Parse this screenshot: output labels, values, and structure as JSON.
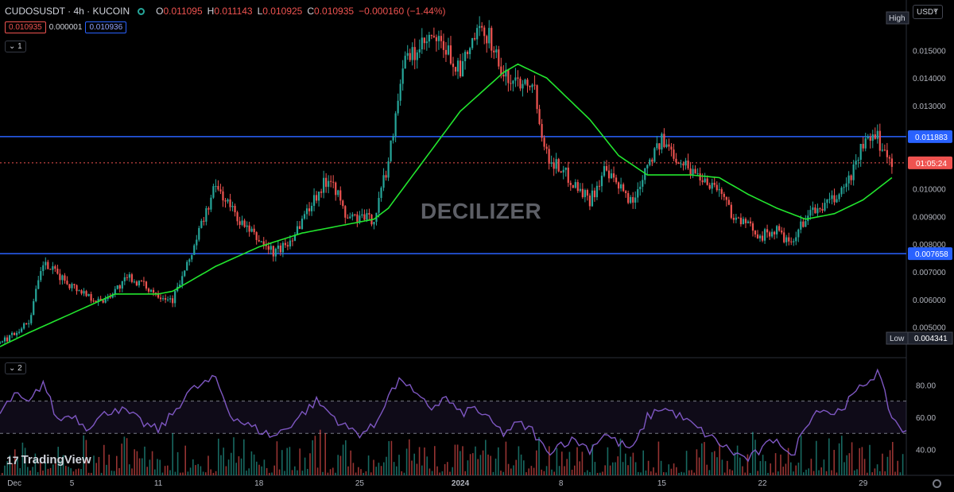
{
  "header": {
    "symbol": "CUDOSUSDT · 4h · KUCOIN",
    "o_label": "O",
    "o_value": "0.011095",
    "h_label": "H",
    "h_value": "0.011143",
    "l_label": "L",
    "l_value": "0.010925",
    "c_label": "C",
    "c_value": "0.010935",
    "change": "−0.000160 (−1.44%)",
    "bid": "0.010935",
    "spread": "0.000001",
    "ask": "0.010936",
    "pane1_tag": "1",
    "pane2_tag": "2",
    "unit": "USDT"
  },
  "watermark": "DECILIZER",
  "logo": "TradingView",
  "colors": {
    "up": "#26a69a",
    "down": "#ef5350",
    "ma": "#22e52e",
    "rsi": "#7e57c2",
    "hline": "#2962ff"
  },
  "chart_data": [
    {
      "type": "candlestick",
      "title": "CUDOSUSDT · 4h · KUCOIN",
      "x_tick_labels": [
        "Dec",
        "5",
        "11",
        "18",
        "25",
        "2024",
        "8",
        "15",
        "22",
        "29"
      ],
      "x_tick_dates": [
        "2023-12-01",
        "2023-12-05",
        "2023-12-11",
        "2023-12-18",
        "2023-12-25",
        "2024-01-01",
        "2024-01-08",
        "2024-01-15",
        "2024-01-22",
        "2024-01-29"
      ],
      "x_range": [
        "2023-11-30",
        "2024-02-01"
      ],
      "y_ticks": [
        0.004,
        0.005,
        0.006,
        0.007,
        0.008,
        0.009,
        0.01,
        0.011,
        0.012,
        0.013,
        0.014,
        0.015
      ],
      "y_tick_labels": [
        "0.004000",
        "0.005000",
        "0.006000",
        "0.007000",
        "0.008000",
        "0.009000",
        "0.010000",
        "0.011000",
        "0.012000",
        "0.013000",
        "0.014000",
        "0.015000"
      ],
      "ylim": [
        0.0039,
        0.0163
      ],
      "close_path": [
        [
          "2023-11-30",
          0.0044
        ],
        [
          "2023-12-02",
          0.0052
        ],
        [
          "2023-12-03",
          0.0073
        ],
        [
          "2023-12-05",
          0.0065
        ],
        [
          "2023-12-07",
          0.0059
        ],
        [
          "2023-12-09",
          0.0068
        ],
        [
          "2023-12-11",
          0.0062
        ],
        [
          "2023-12-12",
          0.006
        ],
        [
          "2023-12-13",
          0.0072
        ],
        [
          "2023-12-14",
          0.0087
        ],
        [
          "2023-12-15",
          0.0101
        ],
        [
          "2023-12-17",
          0.0086
        ],
        [
          "2023-12-19",
          0.0077
        ],
        [
          "2023-12-20",
          0.008
        ],
        [
          "2023-12-22",
          0.0098
        ],
        [
          "2023-12-23",
          0.0105
        ],
        [
          "2023-12-24",
          0.009
        ],
        [
          "2023-12-26",
          0.0089
        ],
        [
          "2023-12-27",
          0.011
        ],
        [
          "2023-12-28",
          0.0145
        ],
        [
          "2023-12-30",
          0.0154
        ],
        [
          "2023-12-31",
          0.015
        ],
        [
          "2024-01-01",
          0.0142
        ],
        [
          "2024-01-02",
          0.0155
        ],
        [
          "2024-01-03",
          0.0156
        ],
        [
          "2024-01-04",
          0.014
        ],
        [
          "2024-01-05",
          0.0139
        ],
        [
          "2024-01-06",
          0.014
        ],
        [
          "2024-01-07",
          0.0112
        ],
        [
          "2024-01-08",
          0.0107
        ],
        [
          "2024-01-10",
          0.0096
        ],
        [
          "2024-01-11",
          0.0106
        ],
        [
          "2024-01-13",
          0.0095
        ],
        [
          "2024-01-14",
          0.011
        ],
        [
          "2024-01-15",
          0.0117
        ],
        [
          "2024-01-17",
          0.0107
        ],
        [
          "2024-01-19",
          0.01
        ],
        [
          "2024-01-20",
          0.009
        ],
        [
          "2024-01-22",
          0.0083
        ],
        [
          "2024-01-23",
          0.0085
        ],
        [
          "2024-01-24",
          0.0079
        ],
        [
          "2024-01-25",
          0.009
        ],
        [
          "2024-01-27",
          0.0096
        ],
        [
          "2024-01-28",
          0.0103
        ],
        [
          "2024-01-29",
          0.0116
        ],
        [
          "2024-01-30",
          0.0118
        ],
        [
          "2024-01-31",
          0.0109
        ]
      ],
      "moving_average": [
        [
          "2023-11-30",
          0.0043
        ],
        [
          "2023-12-02",
          0.0048
        ],
        [
          "2023-12-05",
          0.0055
        ],
        [
          "2023-12-08",
          0.0062
        ],
        [
          "2023-12-11",
          0.0062
        ],
        [
          "2023-12-12",
          0.0063
        ],
        [
          "2023-12-15",
          0.0072
        ],
        [
          "2023-12-18",
          0.0079
        ],
        [
          "2023-12-21",
          0.0084
        ],
        [
          "2023-12-24",
          0.0087
        ],
        [
          "2023-12-26",
          0.0089
        ],
        [
          "2023-12-27",
          0.0093
        ],
        [
          "2023-12-29",
          0.0107
        ],
        [
          "2024-01-01",
          0.0128
        ],
        [
          "2024-01-04",
          0.0142
        ],
        [
          "2024-01-05",
          0.0145
        ],
        [
          "2024-01-07",
          0.014
        ],
        [
          "2024-01-10",
          0.0125
        ],
        [
          "2024-01-12",
          0.0112
        ],
        [
          "2024-01-14",
          0.0105
        ],
        [
          "2024-01-17",
          0.0105
        ],
        [
          "2024-01-19",
          0.0104
        ],
        [
          "2024-01-21",
          0.0098
        ],
        [
          "2024-01-23",
          0.0093
        ],
        [
          "2024-01-25",
          0.0089
        ],
        [
          "2024-01-27",
          0.0091
        ],
        [
          "2024-01-29",
          0.0096
        ],
        [
          "2024-01-31",
          0.0104
        ]
      ],
      "horizontal_lines": [
        {
          "value": 0.011883,
          "label": "0.011883"
        },
        {
          "value": 0.007658,
          "label": "0.007658"
        }
      ],
      "last_price": {
        "value": 0.010935,
        "countdown": "01:05:24"
      },
      "high_marker": {
        "label": "High",
        "value": 0.0162
      },
      "low_marker": {
        "label": "Low",
        "value": 0.004341,
        "value_label": "0.004341"
      }
    },
    {
      "type": "line",
      "x_range": [
        "2023-11-30",
        "2024-02-01"
      ],
      "y_ticks": [
        40,
        60,
        80
      ],
      "y_tick_labels": [
        "40.00",
        "60.00",
        "80.00"
      ],
      "ylim": [
        24,
        92
      ],
      "levels": [
        70,
        50
      ],
      "rsi": [
        [
          "2023-11-30",
          62
        ],
        [
          "2023-12-01",
          74
        ],
        [
          "2023-12-02",
          68
        ],
        [
          "2023-12-03",
          82
        ],
        [
          "2023-12-04",
          58
        ],
        [
          "2023-12-05",
          62
        ],
        [
          "2023-12-06",
          54
        ],
        [
          "2023-12-07",
          60
        ],
        [
          "2023-12-08",
          66
        ],
        [
          "2023-12-09",
          62
        ],
        [
          "2023-12-10",
          56
        ],
        [
          "2023-12-11",
          52
        ],
        [
          "2023-12-12",
          62
        ],
        [
          "2023-12-13",
          75
        ],
        [
          "2023-12-14",
          80
        ],
        [
          "2023-12-15",
          84
        ],
        [
          "2023-12-16",
          62
        ],
        [
          "2023-12-17",
          56
        ],
        [
          "2023-12-18",
          52
        ],
        [
          "2023-12-19",
          48
        ],
        [
          "2023-12-20",
          54
        ],
        [
          "2023-12-21",
          62
        ],
        [
          "2023-12-22",
          70
        ],
        [
          "2023-12-23",
          62
        ],
        [
          "2023-12-24",
          54
        ],
        [
          "2023-12-25",
          50
        ],
        [
          "2023-12-26",
          54
        ],
        [
          "2023-12-27",
          74
        ],
        [
          "2023-12-28",
          84
        ],
        [
          "2023-12-29",
          72
        ],
        [
          "2023-12-30",
          66
        ],
        [
          "2023-12-31",
          72
        ],
        [
          "2024-01-01",
          62
        ],
        [
          "2024-01-02",
          66
        ],
        [
          "2024-01-03",
          58
        ],
        [
          "2024-01-04",
          50
        ],
        [
          "2024-01-05",
          56
        ],
        [
          "2024-01-06",
          52
        ],
        [
          "2024-01-07",
          38
        ],
        [
          "2024-01-08",
          44
        ],
        [
          "2024-01-09",
          46
        ],
        [
          "2024-01-10",
          40
        ],
        [
          "2024-01-11",
          50
        ],
        [
          "2024-01-12",
          44
        ],
        [
          "2024-01-13",
          40
        ],
        [
          "2024-01-14",
          60
        ],
        [
          "2024-01-15",
          66
        ],
        [
          "2024-01-16",
          62
        ],
        [
          "2024-01-17",
          56
        ],
        [
          "2024-01-18",
          50
        ],
        [
          "2024-01-19",
          44
        ],
        [
          "2024-01-20",
          38
        ],
        [
          "2024-01-21",
          34
        ],
        [
          "2024-01-22",
          40
        ],
        [
          "2024-01-23",
          48
        ],
        [
          "2024-01-24",
          34
        ],
        [
          "2024-01-25",
          56
        ],
        [
          "2024-01-26",
          66
        ],
        [
          "2024-01-27",
          62
        ],
        [
          "2024-01-28",
          70
        ],
        [
          "2024-01-29",
          80
        ],
        [
          "2024-01-30",
          88
        ],
        [
          "2024-01-31",
          60
        ],
        [
          "2024-02-01",
          50
        ]
      ]
    }
  ]
}
